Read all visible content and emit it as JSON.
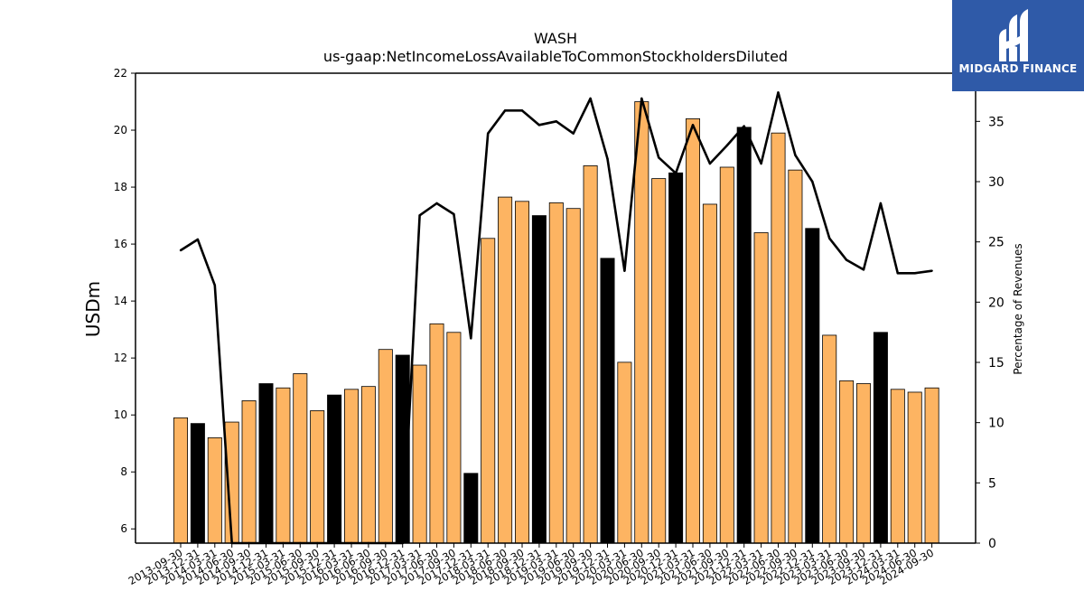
{
  "brand": {
    "name": "MIDGARD FINANCE",
    "bg_color": "#2f5aa8",
    "icon": "midgard-m-logo-icon"
  },
  "chart_data": {
    "type": "bar",
    "title": "WASH",
    "subtitle": "us-gaap:NetIncomeLossAvailableToCommonStockholdersDiluted",
    "ylabel": "USDm",
    "ylabel_right": "Percentage of Revenues",
    "ylim": [
      5.5,
      22.0
    ],
    "ylim_right": [
      0,
      39
    ],
    "yticks": [
      6,
      8,
      10,
      12,
      14,
      16,
      18,
      20,
      22
    ],
    "yticks_right": [
      0,
      5,
      10,
      15,
      20,
      25,
      30,
      35
    ],
    "grid": false,
    "legend": "none",
    "colors": {
      "bar": "#fdb462",
      "bar_highlight": "#000000",
      "line": "#000000"
    },
    "categories": [
      "2013-09-30",
      "2013-12-31",
      "2014-03-31",
      "2014-06-30",
      "2014-09-30",
      "2014-12-31",
      "2015-03-31",
      "2015-06-30",
      "2015-09-30",
      "2015-12-31",
      "2016-03-31",
      "2016-06-30",
      "2016-09-30",
      "2016-12-31",
      "2017-03-31",
      "2017-06-30",
      "2017-09-30",
      "2017-12-31",
      "2018-03-31",
      "2018-06-30",
      "2018-09-30",
      "2018-12-31",
      "2019-03-31",
      "2019-06-30",
      "2019-09-30",
      "2019-12-31",
      "2020-03-31",
      "2020-06-30",
      "2020-09-30",
      "2020-12-31",
      "2021-03-31",
      "2021-06-30",
      "2021-09-30",
      "2021-12-31",
      "2022-03-31",
      "2022-06-30",
      "2022-09-30",
      "2022-12-31",
      "2023-03-31",
      "2023-06-30",
      "2023-09-30",
      "2023-12-31",
      "2024-03-31",
      "2024-06-30",
      "2024-09-30"
    ],
    "series": [
      {
        "type": "bar",
        "values": [
          9.9,
          9.7,
          9.2,
          9.75,
          10.5,
          11.1,
          10.95,
          11.45,
          10.15,
          10.7,
          10.9,
          11.0,
          12.3,
          12.1,
          11.75,
          13.2,
          12.9,
          7.95,
          16.2,
          17.65,
          17.5,
          17.0,
          17.45,
          17.25,
          18.75,
          15.5,
          11.85,
          21.0,
          18.3,
          18.5,
          20.4,
          17.4,
          18.7,
          20.1,
          16.4,
          19.9,
          18.6,
          16.55,
          12.8,
          11.2,
          11.1,
          12.9,
          10.9,
          10.8,
          10.95
        ],
        "highlight": [
          false,
          true,
          false,
          false,
          false,
          true,
          false,
          false,
          false,
          true,
          false,
          false,
          false,
          true,
          false,
          false,
          false,
          true,
          false,
          false,
          false,
          true,
          false,
          false,
          false,
          true,
          false,
          false,
          false,
          true,
          false,
          false,
          false,
          true,
          false,
          false,
          false,
          true,
          false,
          false,
          false,
          true,
          false,
          false,
          false
        ]
      },
      {
        "type": "line",
        "axis": "right",
        "values": [
          24.3,
          25.2,
          21.4,
          0,
          0,
          0,
          0,
          0,
          0,
          0,
          0,
          0,
          0,
          0,
          27.2,
          28.2,
          27.3,
          17.0,
          34.0,
          35.9,
          35.9,
          34.7,
          35.0,
          34.0,
          36.9,
          31.9,
          22.6,
          36.9,
          32.0,
          30.7,
          34.7,
          31.5,
          33.0,
          34.6,
          31.5,
          37.4,
          32.2,
          30.0,
          25.3,
          23.5,
          22.7,
          28.2,
          22.4,
          22.4,
          22.6
        ]
      }
    ]
  }
}
